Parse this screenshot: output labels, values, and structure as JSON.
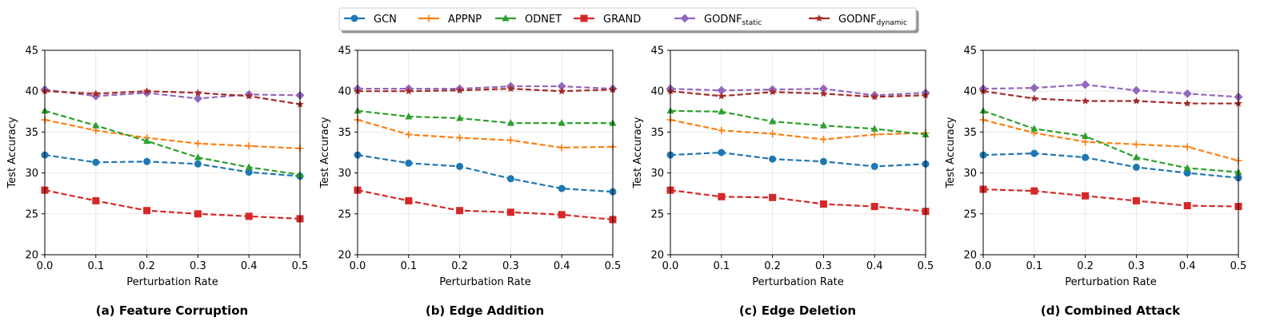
{
  "figure": {
    "legend": [
      {
        "label": "GCN",
        "sub": "",
        "color": "#1f77b4",
        "marker": "circle"
      },
      {
        "label": "APPNP",
        "sub": "",
        "color": "#ff7f0e",
        "marker": "plus"
      },
      {
        "label": "ODNET",
        "sub": "",
        "color": "#2ca02c",
        "marker": "triangle"
      },
      {
        "label": "GRAND",
        "sub": "",
        "color": "#d62728",
        "marker": "square"
      },
      {
        "label": "GODNF",
        "sub": "static",
        "color": "#9467bd",
        "marker": "diamond"
      },
      {
        "label": "GODNF",
        "sub": "dynamic",
        "color": "#a52a2a",
        "marker": "star"
      }
    ]
  },
  "chart_data": [
    {
      "type": "line",
      "title": "(a) Feature Corruption",
      "xlabel": "Perturbation Rate",
      "ylabel": "Test Accuracy",
      "xlim": [
        0.0,
        0.5
      ],
      "ylim": [
        20,
        45
      ],
      "xticks": [
        "0.0",
        "0.1",
        "0.2",
        "0.3",
        "0.4",
        "0.5"
      ],
      "yticks": [
        "20",
        "25",
        "30",
        "35",
        "40",
        "45"
      ],
      "grid": true,
      "x": [
        0.0,
        0.1,
        0.2,
        0.3,
        0.4,
        0.5
      ],
      "series": [
        {
          "name": "GCN",
          "values": [
            32.2,
            31.3,
            31.4,
            31.1,
            30.1,
            29.6
          ]
        },
        {
          "name": "APPNP",
          "values": [
            36.5,
            35.2,
            34.3,
            33.6,
            33.3,
            33.0
          ]
        },
        {
          "name": "ODNET",
          "values": [
            37.6,
            35.8,
            33.9,
            31.9,
            30.7,
            29.8
          ]
        },
        {
          "name": "GRAND",
          "values": [
            27.9,
            26.6,
            25.4,
            25.0,
            24.7,
            24.4
          ]
        },
        {
          "name": "GODNF_static",
          "values": [
            40.2,
            39.4,
            39.8,
            39.1,
            39.6,
            39.5
          ]
        },
        {
          "name": "GODNF_dynamic",
          "values": [
            40.0,
            39.7,
            40.0,
            39.8,
            39.4,
            38.4
          ]
        }
      ]
    },
    {
      "type": "line",
      "title": "(b) Edge Addition",
      "xlabel": "Perturbation Rate",
      "ylabel": "Test Accuracy",
      "xlim": [
        0.0,
        0.5
      ],
      "ylim": [
        20,
        45
      ],
      "xticks": [
        "0.0",
        "0.1",
        "0.2",
        "0.3",
        "0.4",
        "0.5"
      ],
      "yticks": [
        "20",
        "25",
        "30",
        "35",
        "40",
        "45"
      ],
      "grid": true,
      "x": [
        0.0,
        0.1,
        0.2,
        0.3,
        0.4,
        0.5
      ],
      "series": [
        {
          "name": "GCN",
          "values": [
            32.2,
            31.2,
            30.8,
            29.3,
            28.1,
            27.7
          ]
        },
        {
          "name": "APPNP",
          "values": [
            36.5,
            34.7,
            34.3,
            34.0,
            33.1,
            33.2
          ]
        },
        {
          "name": "ODNET",
          "values": [
            37.6,
            36.9,
            36.7,
            36.1,
            36.1,
            36.1
          ]
        },
        {
          "name": "GRAND",
          "values": [
            27.9,
            26.6,
            25.4,
            25.2,
            24.9,
            24.3
          ]
        },
        {
          "name": "GODNF_static",
          "values": [
            40.3,
            40.3,
            40.3,
            40.6,
            40.6,
            40.3
          ]
        },
        {
          "name": "GODNF_dynamic",
          "values": [
            40.0,
            40.0,
            40.1,
            40.3,
            40.0,
            40.2
          ]
        }
      ]
    },
    {
      "type": "line",
      "title": "(c) Edge Deletion",
      "xlabel": "Perturbation Rate",
      "ylabel": "Test Accuracy",
      "xlim": [
        0.0,
        0.5
      ],
      "ylim": [
        20,
        45
      ],
      "xticks": [
        "0.0",
        "0.1",
        "0.2",
        "0.3",
        "0.4",
        "0.5"
      ],
      "yticks": [
        "20",
        "25",
        "30",
        "35",
        "40",
        "45"
      ],
      "grid": true,
      "x": [
        0.0,
        0.1,
        0.2,
        0.3,
        0.4,
        0.5
      ],
      "series": [
        {
          "name": "GCN",
          "values": [
            32.2,
            32.5,
            31.7,
            31.4,
            30.8,
            31.1
          ]
        },
        {
          "name": "APPNP",
          "values": [
            36.5,
            35.2,
            34.8,
            34.1,
            34.7,
            34.9
          ]
        },
        {
          "name": "ODNET",
          "values": [
            37.6,
            37.5,
            36.3,
            35.8,
            35.4,
            34.7
          ]
        },
        {
          "name": "GRAND",
          "values": [
            27.9,
            27.1,
            27.0,
            26.2,
            25.9,
            25.3
          ]
        },
        {
          "name": "GODNF_static",
          "values": [
            40.3,
            40.1,
            40.2,
            40.3,
            39.5,
            39.8
          ]
        },
        {
          "name": "GODNF_dynamic",
          "values": [
            40.0,
            39.4,
            39.9,
            39.7,
            39.3,
            39.5
          ]
        }
      ]
    },
    {
      "type": "line",
      "title": "(d) Combined Attack",
      "xlabel": "Perturbation Rate",
      "ylabel": "Test Accuracy",
      "xlim": [
        0.0,
        0.5
      ],
      "ylim": [
        20,
        45
      ],
      "xticks": [
        "0.0",
        "0.1",
        "0.2",
        "0.3",
        "0.4",
        "0.5"
      ],
      "yticks": [
        "20",
        "25",
        "30",
        "35",
        "40",
        "45"
      ],
      "grid": true,
      "x": [
        0.0,
        0.1,
        0.2,
        0.3,
        0.4,
        0.5
      ],
      "series": [
        {
          "name": "GCN",
          "values": [
            32.2,
            32.4,
            31.9,
            30.7,
            30.0,
            29.4
          ]
        },
        {
          "name": "APPNP",
          "values": [
            36.5,
            34.9,
            33.8,
            33.5,
            33.2,
            31.5
          ]
        },
        {
          "name": "ODNET",
          "values": [
            37.6,
            35.4,
            34.5,
            31.9,
            30.6,
            30.1
          ]
        },
        {
          "name": "GRAND",
          "values": [
            28.0,
            27.8,
            27.2,
            26.6,
            26.0,
            25.9
          ]
        },
        {
          "name": "GODNF_static",
          "values": [
            40.3,
            40.4,
            40.8,
            40.1,
            39.7,
            39.3
          ]
        },
        {
          "name": "GODNF_dynamic",
          "values": [
            40.0,
            39.1,
            38.8,
            38.8,
            38.5,
            38.5
          ]
        }
      ]
    }
  ]
}
